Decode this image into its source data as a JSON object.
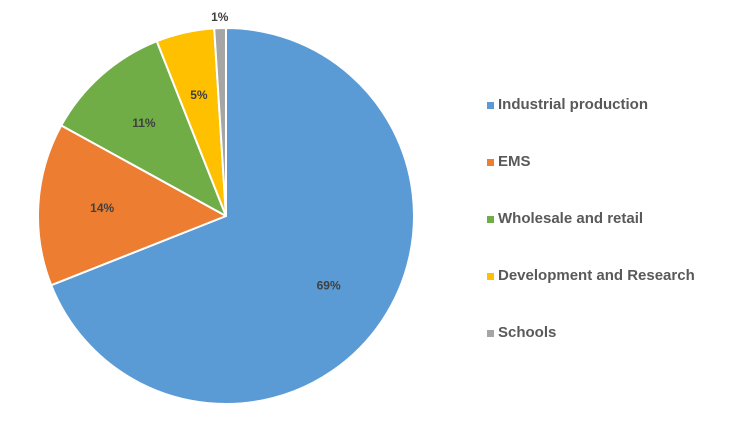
{
  "chart_data": {
    "type": "pie",
    "title": "",
    "categories": [
      "Industrial production",
      "EMS",
      "Wholesale and retail",
      "Development and Research",
      "Schools"
    ],
    "values": [
      69,
      14,
      11,
      5,
      1
    ],
    "data_labels": [
      "69%",
      "14%",
      "11%",
      "5%",
      "1%"
    ],
    "colors": [
      "#5B9BD5",
      "#ED7D31",
      "#70AD47",
      "#FFC000",
      "#A5A5A5"
    ],
    "start_angle_deg": 0,
    "direction": "clockwise",
    "legend_position": "right"
  }
}
